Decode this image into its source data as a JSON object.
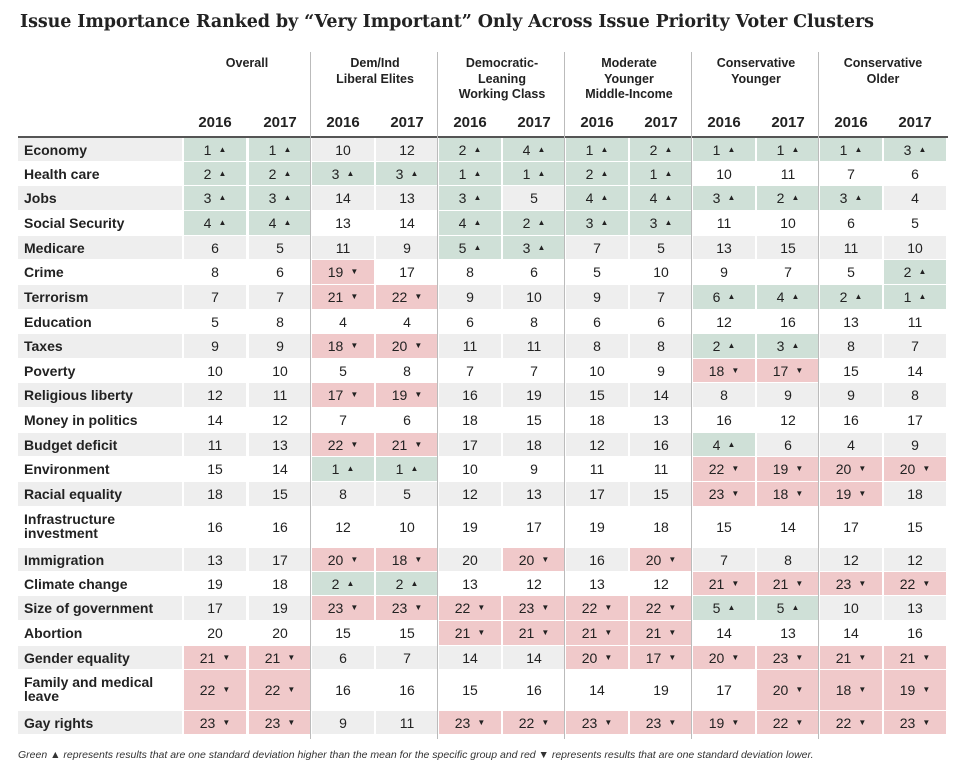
{
  "title": "Issue Importance Ranked by “Very Important” Only Across Issue Priority Voter Clusters",
  "note": "Green ▲ represents results that are one standard deviation higher than the mean for the specific group and red ▼ represents results that are one standard deviation lower.",
  "colors": {
    "high": "#cfe0d7",
    "low": "#f0c9ca",
    "stripe": "#eeeeee"
  },
  "chart_data": {
    "type": "table",
    "groups": [
      "Overall",
      "Dem/Ind\nLiberal Elites",
      "Democratic-\nLeaning\nWorking Class",
      "Moderate\nYounger\nMiddle-Income",
      "Conservative\nYounger",
      "Conservative\nOlder"
    ],
    "years": [
      "2016",
      "2017"
    ],
    "rows": [
      {
        "issue": "Economy",
        "ranks": [
          [
            1,
            "h"
          ],
          [
            1,
            "h"
          ],
          [
            10,
            ""
          ],
          [
            12,
            ""
          ],
          [
            2,
            "h"
          ],
          [
            4,
            "h"
          ],
          [
            1,
            "h"
          ],
          [
            2,
            "h"
          ],
          [
            1,
            "h"
          ],
          [
            1,
            "h"
          ],
          [
            1,
            "h"
          ],
          [
            3,
            "h"
          ]
        ]
      },
      {
        "issue": "Health care",
        "ranks": [
          [
            2,
            "h"
          ],
          [
            2,
            "h"
          ],
          [
            3,
            "h"
          ],
          [
            3,
            "h"
          ],
          [
            1,
            "h"
          ],
          [
            1,
            "h"
          ],
          [
            2,
            "h"
          ],
          [
            1,
            "h"
          ],
          [
            10,
            ""
          ],
          [
            11,
            ""
          ],
          [
            7,
            ""
          ],
          [
            6,
            ""
          ]
        ]
      },
      {
        "issue": "Jobs",
        "ranks": [
          [
            3,
            "h"
          ],
          [
            3,
            "h"
          ],
          [
            14,
            ""
          ],
          [
            13,
            ""
          ],
          [
            3,
            "h"
          ],
          [
            5,
            ""
          ],
          [
            4,
            "h"
          ],
          [
            4,
            "h"
          ],
          [
            3,
            "h"
          ],
          [
            2,
            "h"
          ],
          [
            3,
            "h"
          ],
          [
            4,
            ""
          ]
        ]
      },
      {
        "issue": "Social Security",
        "ranks": [
          [
            4,
            "h"
          ],
          [
            4,
            "h"
          ],
          [
            13,
            ""
          ],
          [
            14,
            ""
          ],
          [
            4,
            "h"
          ],
          [
            2,
            "h"
          ],
          [
            3,
            "h"
          ],
          [
            3,
            "h"
          ],
          [
            11,
            ""
          ],
          [
            10,
            ""
          ],
          [
            6,
            ""
          ],
          [
            5,
            ""
          ]
        ]
      },
      {
        "issue": "Medicare",
        "ranks": [
          [
            6,
            ""
          ],
          [
            5,
            ""
          ],
          [
            11,
            ""
          ],
          [
            9,
            ""
          ],
          [
            5,
            "h"
          ],
          [
            3,
            "h"
          ],
          [
            7,
            ""
          ],
          [
            5,
            ""
          ],
          [
            13,
            ""
          ],
          [
            15,
            ""
          ],
          [
            11,
            ""
          ],
          [
            10,
            ""
          ]
        ]
      },
      {
        "issue": "Crime",
        "ranks": [
          [
            8,
            ""
          ],
          [
            6,
            ""
          ],
          [
            19,
            "l"
          ],
          [
            17,
            ""
          ],
          [
            8,
            ""
          ],
          [
            6,
            ""
          ],
          [
            5,
            ""
          ],
          [
            10,
            ""
          ],
          [
            9,
            ""
          ],
          [
            7,
            ""
          ],
          [
            5,
            ""
          ],
          [
            2,
            "h"
          ]
        ]
      },
      {
        "issue": "Terrorism",
        "ranks": [
          [
            7,
            ""
          ],
          [
            7,
            ""
          ],
          [
            21,
            "l"
          ],
          [
            22,
            "l"
          ],
          [
            9,
            ""
          ],
          [
            10,
            ""
          ],
          [
            9,
            ""
          ],
          [
            7,
            ""
          ],
          [
            6,
            "h"
          ],
          [
            4,
            "h"
          ],
          [
            2,
            "h"
          ],
          [
            1,
            "h"
          ]
        ]
      },
      {
        "issue": "Education",
        "ranks": [
          [
            5,
            ""
          ],
          [
            8,
            ""
          ],
          [
            4,
            ""
          ],
          [
            4,
            ""
          ],
          [
            6,
            ""
          ],
          [
            8,
            ""
          ],
          [
            6,
            ""
          ],
          [
            6,
            ""
          ],
          [
            12,
            ""
          ],
          [
            16,
            ""
          ],
          [
            13,
            ""
          ],
          [
            11,
            ""
          ]
        ]
      },
      {
        "issue": "Taxes",
        "ranks": [
          [
            9,
            ""
          ],
          [
            9,
            ""
          ],
          [
            18,
            "l"
          ],
          [
            20,
            "l"
          ],
          [
            11,
            ""
          ],
          [
            11,
            ""
          ],
          [
            8,
            ""
          ],
          [
            8,
            ""
          ],
          [
            2,
            "h"
          ],
          [
            3,
            "h"
          ],
          [
            8,
            ""
          ],
          [
            7,
            ""
          ]
        ]
      },
      {
        "issue": "Poverty",
        "ranks": [
          [
            10,
            ""
          ],
          [
            10,
            ""
          ],
          [
            5,
            ""
          ],
          [
            8,
            ""
          ],
          [
            7,
            ""
          ],
          [
            7,
            ""
          ],
          [
            10,
            ""
          ],
          [
            9,
            ""
          ],
          [
            18,
            "l"
          ],
          [
            17,
            "l"
          ],
          [
            15,
            ""
          ],
          [
            14,
            ""
          ]
        ]
      },
      {
        "issue": "Religious liberty",
        "ranks": [
          [
            12,
            ""
          ],
          [
            11,
            ""
          ],
          [
            17,
            "l"
          ],
          [
            19,
            "l"
          ],
          [
            16,
            ""
          ],
          [
            19,
            ""
          ],
          [
            15,
            ""
          ],
          [
            14,
            ""
          ],
          [
            8,
            ""
          ],
          [
            9,
            ""
          ],
          [
            9,
            ""
          ],
          [
            8,
            ""
          ]
        ]
      },
      {
        "issue": "Money in politics",
        "ranks": [
          [
            14,
            ""
          ],
          [
            12,
            ""
          ],
          [
            7,
            ""
          ],
          [
            6,
            ""
          ],
          [
            18,
            ""
          ],
          [
            15,
            ""
          ],
          [
            18,
            ""
          ],
          [
            13,
            ""
          ],
          [
            16,
            ""
          ],
          [
            12,
            ""
          ],
          [
            16,
            ""
          ],
          [
            17,
            ""
          ]
        ]
      },
      {
        "issue": "Budget deficit",
        "ranks": [
          [
            11,
            ""
          ],
          [
            13,
            ""
          ],
          [
            22,
            "l"
          ],
          [
            21,
            "l"
          ],
          [
            17,
            ""
          ],
          [
            18,
            ""
          ],
          [
            12,
            ""
          ],
          [
            16,
            ""
          ],
          [
            4,
            "h"
          ],
          [
            6,
            ""
          ],
          [
            4,
            ""
          ],
          [
            9,
            ""
          ]
        ]
      },
      {
        "issue": "Environment",
        "ranks": [
          [
            15,
            ""
          ],
          [
            14,
            ""
          ],
          [
            1,
            "h"
          ],
          [
            1,
            "h"
          ],
          [
            10,
            ""
          ],
          [
            9,
            ""
          ],
          [
            11,
            ""
          ],
          [
            11,
            ""
          ],
          [
            22,
            "l"
          ],
          [
            19,
            "l"
          ],
          [
            20,
            "l"
          ],
          [
            20,
            "l"
          ]
        ]
      },
      {
        "issue": "Racial equality",
        "ranks": [
          [
            18,
            ""
          ],
          [
            15,
            ""
          ],
          [
            8,
            ""
          ],
          [
            5,
            ""
          ],
          [
            12,
            ""
          ],
          [
            13,
            ""
          ],
          [
            17,
            ""
          ],
          [
            15,
            ""
          ],
          [
            23,
            "l"
          ],
          [
            18,
            "l"
          ],
          [
            19,
            "l"
          ],
          [
            18,
            ""
          ]
        ]
      },
      {
        "issue": "Infrastructure\ninvestment",
        "ranks": [
          [
            16,
            ""
          ],
          [
            16,
            ""
          ],
          [
            12,
            ""
          ],
          [
            10,
            ""
          ],
          [
            19,
            ""
          ],
          [
            17,
            ""
          ],
          [
            19,
            ""
          ],
          [
            18,
            ""
          ],
          [
            15,
            ""
          ],
          [
            14,
            ""
          ],
          [
            17,
            ""
          ],
          [
            15,
            ""
          ]
        ]
      },
      {
        "issue": "Immigration",
        "ranks": [
          [
            13,
            ""
          ],
          [
            17,
            ""
          ],
          [
            20,
            "l"
          ],
          [
            18,
            "l"
          ],
          [
            20,
            ""
          ],
          [
            20,
            "l"
          ],
          [
            16,
            ""
          ],
          [
            20,
            "l"
          ],
          [
            7,
            ""
          ],
          [
            8,
            ""
          ],
          [
            12,
            ""
          ],
          [
            12,
            ""
          ]
        ]
      },
      {
        "issue": "Climate change",
        "ranks": [
          [
            19,
            ""
          ],
          [
            18,
            ""
          ],
          [
            2,
            "h"
          ],
          [
            2,
            "h"
          ],
          [
            13,
            ""
          ],
          [
            12,
            ""
          ],
          [
            13,
            ""
          ],
          [
            12,
            ""
          ],
          [
            21,
            "l"
          ],
          [
            21,
            "l"
          ],
          [
            23,
            "l"
          ],
          [
            22,
            "l"
          ]
        ]
      },
      {
        "issue": "Size of government",
        "ranks": [
          [
            17,
            ""
          ],
          [
            19,
            ""
          ],
          [
            23,
            "l"
          ],
          [
            23,
            "l"
          ],
          [
            22,
            "l"
          ],
          [
            23,
            "l"
          ],
          [
            22,
            "l"
          ],
          [
            22,
            "l"
          ],
          [
            5,
            "h"
          ],
          [
            5,
            "h"
          ],
          [
            10,
            ""
          ],
          [
            13,
            ""
          ]
        ]
      },
      {
        "issue": "Abortion",
        "ranks": [
          [
            20,
            ""
          ],
          [
            20,
            ""
          ],
          [
            15,
            ""
          ],
          [
            15,
            ""
          ],
          [
            21,
            "l"
          ],
          [
            21,
            "l"
          ],
          [
            21,
            "l"
          ],
          [
            21,
            "l"
          ],
          [
            14,
            ""
          ],
          [
            13,
            ""
          ],
          [
            14,
            ""
          ],
          [
            16,
            ""
          ]
        ]
      },
      {
        "issue": "Gender equality",
        "ranks": [
          [
            21,
            "l"
          ],
          [
            21,
            "l"
          ],
          [
            6,
            ""
          ],
          [
            7,
            ""
          ],
          [
            14,
            ""
          ],
          [
            14,
            ""
          ],
          [
            20,
            "l"
          ],
          [
            17,
            "l"
          ],
          [
            20,
            "l"
          ],
          [
            23,
            "l"
          ],
          [
            21,
            "l"
          ],
          [
            21,
            "l"
          ]
        ]
      },
      {
        "issue": "Family and medical\nleave",
        "ranks": [
          [
            22,
            "l"
          ],
          [
            22,
            "l"
          ],
          [
            16,
            ""
          ],
          [
            16,
            ""
          ],
          [
            15,
            ""
          ],
          [
            16,
            ""
          ],
          [
            14,
            ""
          ],
          [
            19,
            ""
          ],
          [
            17,
            ""
          ],
          [
            20,
            "l"
          ],
          [
            18,
            "l"
          ],
          [
            19,
            "l"
          ]
        ]
      },
      {
        "issue": "Gay rights",
        "ranks": [
          [
            23,
            "l"
          ],
          [
            23,
            "l"
          ],
          [
            9,
            ""
          ],
          [
            11,
            ""
          ],
          [
            23,
            "l"
          ],
          [
            22,
            "l"
          ],
          [
            23,
            "l"
          ],
          [
            23,
            "l"
          ],
          [
            19,
            "l"
          ],
          [
            22,
            "l"
          ],
          [
            22,
            "l"
          ],
          [
            23,
            "l"
          ]
        ]
      }
    ]
  }
}
